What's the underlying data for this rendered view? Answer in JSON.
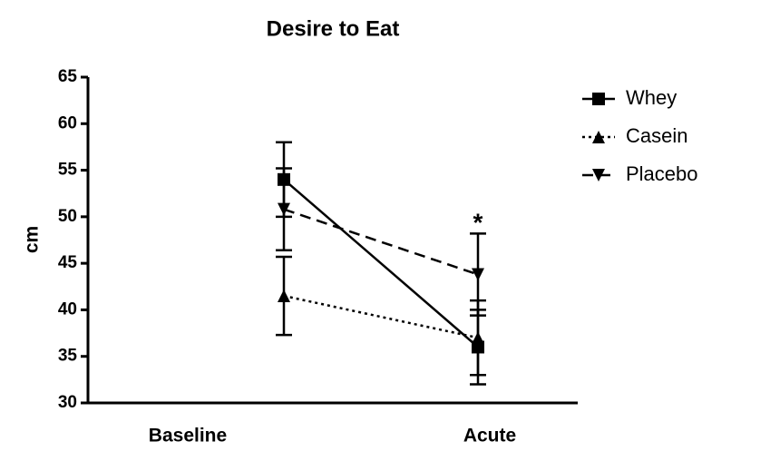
{
  "chart_data": {
    "type": "line",
    "title": "Desire to Eat",
    "ylabel": "cm",
    "categories": [
      "Baseline",
      "Acute"
    ],
    "series": [
      {
        "name": "Whey",
        "color": "#000000",
        "linestyle": "solid",
        "marker": "square",
        "values": [
          54,
          36
        ],
        "errors": [
          4,
          4
        ]
      },
      {
        "name": "Casein",
        "color": "#000000",
        "linestyle": "dotted",
        "marker": "triangle-up",
        "values": [
          41.5,
          37
        ],
        "errors": [
          4.2,
          4
        ]
      },
      {
        "name": "Placebo",
        "color": "#000000",
        "linestyle": "dashed",
        "marker": "triangle-down",
        "values": [
          50.8,
          43.8
        ],
        "errors": [
          4.4,
          4.4
        ]
      }
    ],
    "annotations": [
      {
        "text": "*",
        "category": 1,
        "y": 49.8
      }
    ],
    "ylim": [
      30,
      65
    ],
    "yticks": [
      30,
      35,
      40,
      45,
      50,
      55,
      60,
      65
    ],
    "legend": "right"
  }
}
